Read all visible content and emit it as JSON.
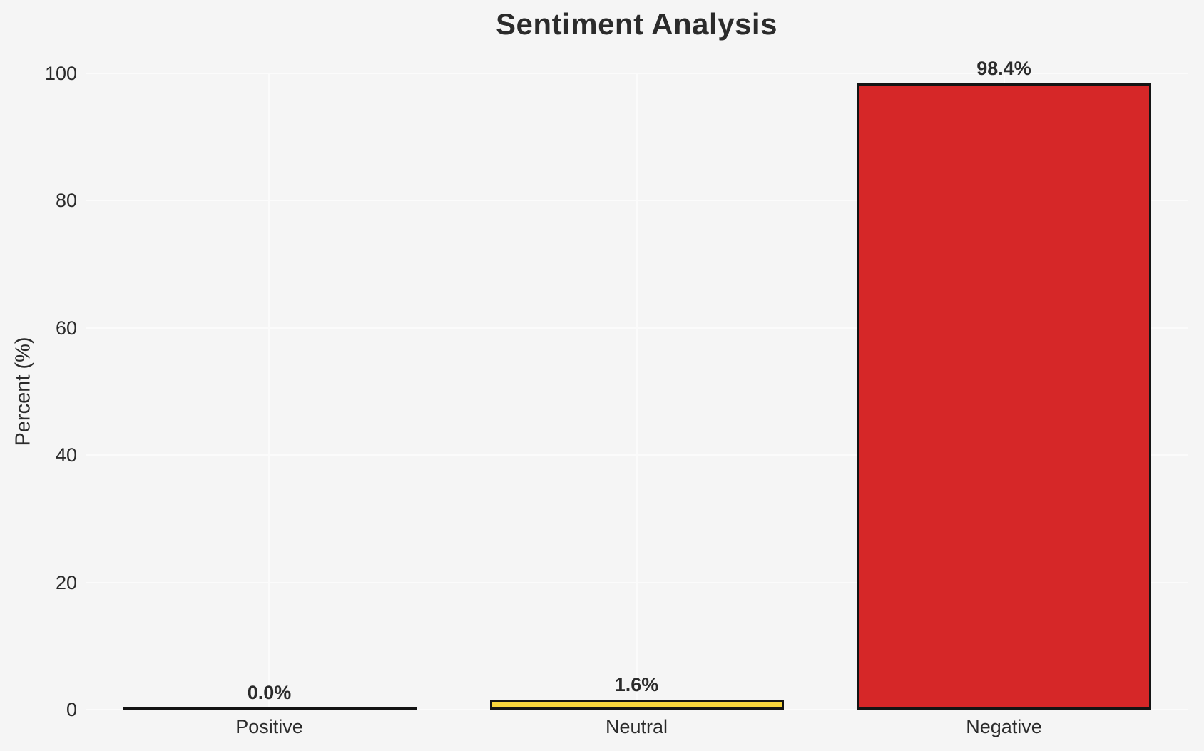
{
  "colors": {
    "background": "#f5f5f5",
    "gridline": "#fbfbfb",
    "text": "#2b2b2b",
    "bar_edge": "#141414",
    "neutral_bar": "#f7d53d",
    "negative_bar": "#d62728"
  },
  "chart_data": {
    "type": "bar",
    "title": "Sentiment Analysis",
    "xlabel": "",
    "ylabel": "Percent (%)",
    "categories": [
      "Positive",
      "Neutral",
      "Negative"
    ],
    "values": [
      0.0,
      1.6,
      98.4
    ],
    "bar_labels": [
      "0.0%",
      "1.6%",
      "98.4%"
    ],
    "bar_colors": [
      null,
      "#f7d53d",
      "#d62728"
    ],
    "ylim": [
      0,
      100
    ],
    "yticks": [
      0,
      20,
      40,
      60,
      80,
      100
    ],
    "grid": true,
    "legend": "none"
  }
}
